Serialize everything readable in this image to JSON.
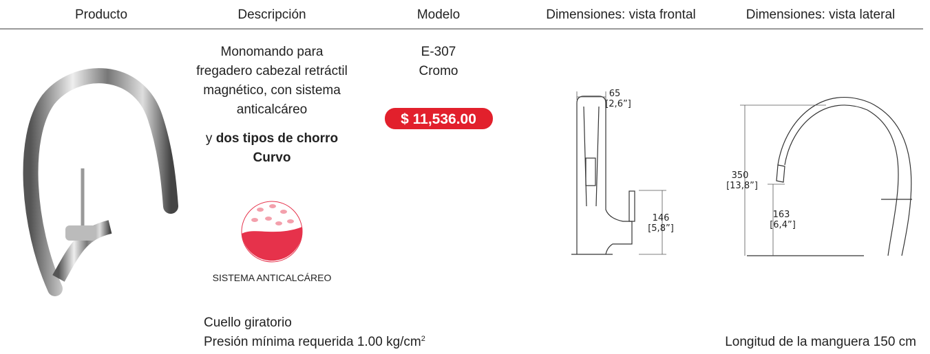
{
  "header": {
    "columns": [
      "Producto",
      "Descripción",
      "Modelo",
      "Dimensiones: vista frontal",
      "Dimensiones: vista lateral"
    ]
  },
  "description": {
    "lines": [
      "Monomando para",
      "fregadero cabezal retráctil",
      "magnético, con sistema",
      "anticalcáreo"
    ],
    "prefix": "y",
    "bold_lines": [
      "dos tipos de chorro",
      "Curvo"
    ],
    "badge": "SISTEMA ANTICALCÁREO"
  },
  "model": {
    "code": "E-307",
    "finish": "Cromo",
    "price": "$ 11,536.00"
  },
  "front_view": {
    "width": "65",
    "width_in": "[2,6”]",
    "height": "146",
    "height_in": "[5,8”]"
  },
  "side_view": {
    "height": "350",
    "height_in": "[13,8”]",
    "spout_height": "163",
    "spout_height_in": "[6,4”]"
  },
  "notes": {
    "swivel": "Cuello giratorio",
    "pressure": "Presión mínima requerida 1.00 kg/cm",
    "pressure_sup": "2",
    "hose": "Longitud de la manguera 150 cm"
  }
}
